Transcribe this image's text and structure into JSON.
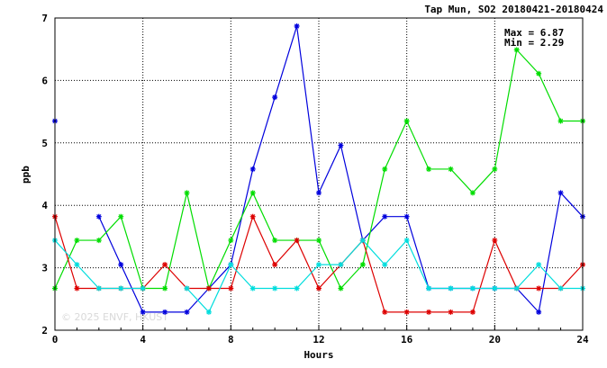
{
  "chart_data": {
    "type": "line",
    "title": "Tap Mun, SO2 20180421-20180424",
    "xlabel": "Hours",
    "ylabel": "ppb",
    "xlim": [
      0,
      24
    ],
    "ylim": [
      2,
      7
    ],
    "xticks": [
      0,
      4,
      8,
      12,
      16,
      20,
      24
    ],
    "yticks": [
      2,
      3,
      4,
      5,
      6,
      7
    ],
    "grid": true,
    "annotations": {
      "max": "Max = 6.87",
      "min": "Min = 2.29"
    },
    "watermark": "© 2025  ENVF, HKUST",
    "x": [
      0,
      1,
      2,
      3,
      4,
      5,
      6,
      7,
      8,
      9,
      10,
      11,
      12,
      13,
      14,
      15,
      16,
      17,
      18,
      19,
      20,
      21,
      22,
      23,
      24
    ],
    "series": [
      {
        "color": "#0000dd",
        "values": [
          5.35,
          null,
          3.82,
          3.05,
          2.29,
          2.29,
          2.29,
          2.67,
          3.05,
          4.58,
          5.73,
          6.87,
          4.2,
          4.96,
          3.44,
          3.82,
          3.82,
          2.67,
          2.67,
          2.67,
          2.67,
          2.67,
          2.29,
          4.2,
          3.82
        ]
      },
      {
        "color": "#00dd00",
        "values": [
          2.67,
          3.44,
          3.44,
          3.82,
          2.67,
          2.67,
          4.2,
          2.67,
          3.44,
          4.2,
          3.44,
          3.44,
          3.44,
          2.67,
          3.05,
          4.58,
          5.35,
          4.58,
          4.58,
          4.2,
          4.58,
          6.49,
          6.11,
          5.35,
          5.35
        ]
      },
      {
        "color": "#dd0000",
        "values": [
          3.82,
          2.67,
          2.67,
          2.67,
          2.67,
          3.05,
          2.67,
          2.67,
          2.67,
          3.82,
          3.05,
          3.44,
          2.67,
          3.05,
          3.44,
          2.29,
          2.29,
          2.29,
          2.29,
          2.29,
          3.44,
          2.67,
          2.67,
          2.67,
          3.05
        ]
      },
      {
        "color": "#00dddd",
        "values": [
          3.44,
          3.05,
          2.67,
          2.67,
          2.67,
          null,
          2.67,
          2.29,
          3.05,
          2.67,
          2.67,
          2.67,
          3.05,
          3.05,
          3.44,
          3.05,
          3.44,
          2.67,
          2.67,
          2.67,
          2.67,
          2.67,
          3.05,
          2.67,
          2.67
        ]
      }
    ]
  }
}
